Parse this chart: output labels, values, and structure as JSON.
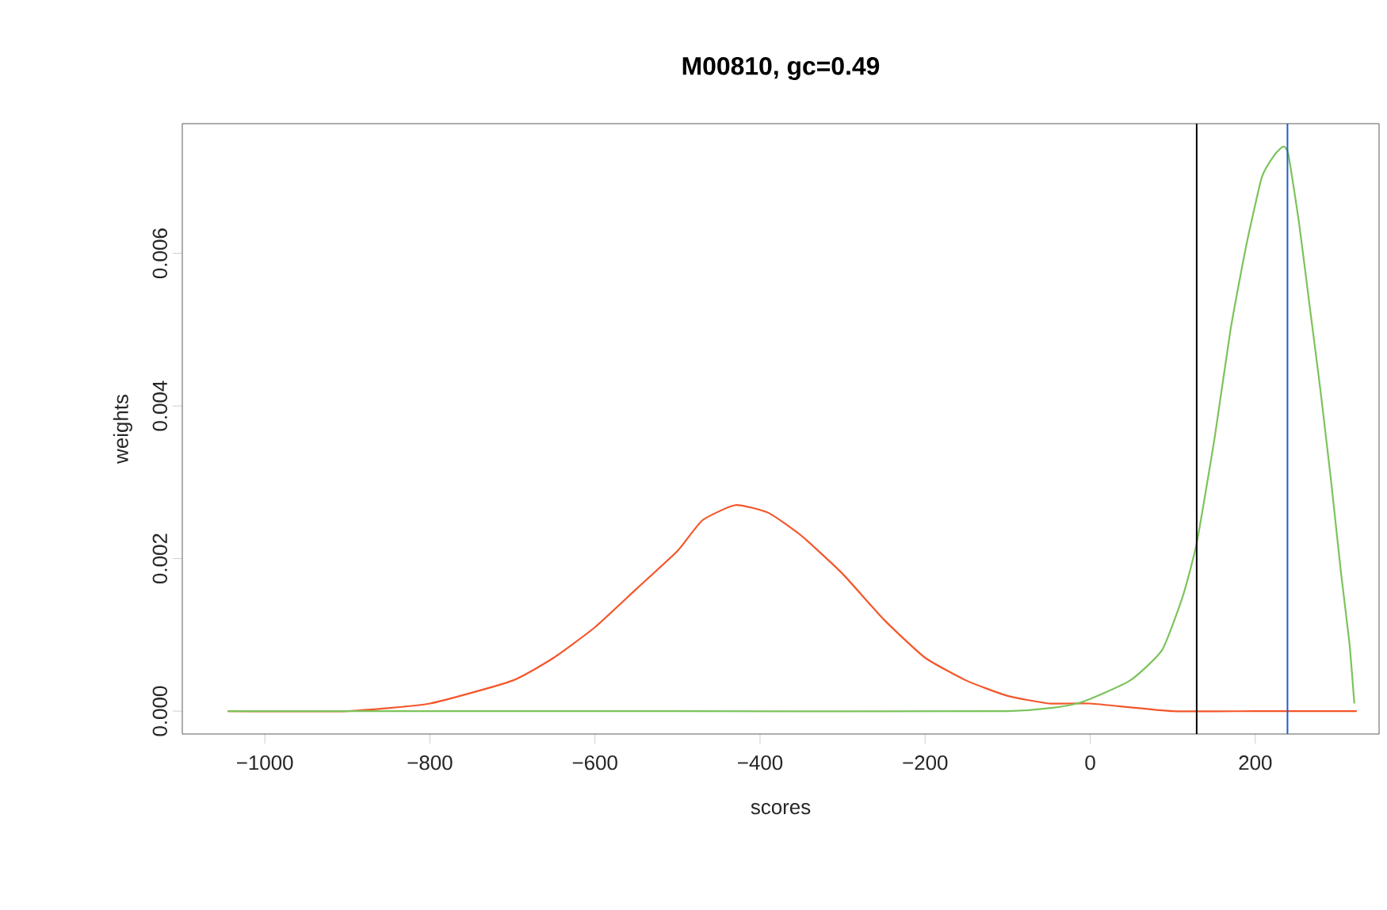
{
  "chart_data": {
    "type": "line",
    "title": "M00810, gc=0.49",
    "xlabel": "scores",
    "ylabel": "weights",
    "xlim": [
      -1100,
      350
    ],
    "ylim": [
      -0.0003,
      0.0077
    ],
    "xticks": [
      {
        "value": -1000,
        "label": "−1000"
      },
      {
        "value": -800,
        "label": "−800"
      },
      {
        "value": -600,
        "label": "−600"
      },
      {
        "value": -400,
        "label": "−400"
      },
      {
        "value": -200,
        "label": "−200"
      },
      0,
      200
    ],
    "yticks": [
      {
        "value": 0,
        "label": "0.000"
      },
      {
        "value": 0.002,
        "label": "0.002"
      },
      {
        "value": 0.004,
        "label": "0.004"
      },
      {
        "value": 0.006,
        "label": "0.006"
      }
    ],
    "grid": false,
    "marker": "none",
    "line_style": "solid",
    "series": [
      {
        "color": "#f4562a",
        "x": [
          -1045,
          -900,
          -800,
          -700,
          -650,
          -600,
          -550,
          -500,
          -470,
          -430,
          -390,
          -350,
          -300,
          -250,
          -200,
          -150,
          -100,
          -50,
          0,
          100,
          200,
          323
        ],
        "values": [
          0,
          0,
          0.0001,
          0.0004,
          0.0007,
          0.0011,
          0.0016,
          0.0021,
          0.0025,
          0.0027,
          0.0026,
          0.0023,
          0.0018,
          0.0012,
          0.0007,
          0.0004,
          0.0002,
          0.0001,
          0.0001,
          0,
          0,
          0
        ]
      },
      {
        "color": "#7cc35c",
        "x": [
          -1045,
          -500,
          -100,
          -16,
          48,
          87,
          112,
          129,
          151,
          170,
          189,
          208,
          224,
          234,
          240,
          253,
          266,
          279,
          292,
          304,
          314,
          320
        ],
        "values": [
          0,
          0,
          0,
          0.0001,
          0.0004,
          0.0008,
          0.0015,
          0.0022,
          0.0036,
          0.005,
          0.0061,
          0.007,
          0.0073,
          0.0074,
          0.0073,
          0.0064,
          0.0053,
          0.0042,
          0.003,
          0.0018,
          0.0009,
          0.0001
        ]
      }
    ],
    "ref_lines": [
      {
        "axis": "x",
        "value": 129,
        "color": "#000000"
      },
      {
        "axis": "x",
        "value": 239,
        "color": "#1f5fc9"
      }
    ]
  }
}
